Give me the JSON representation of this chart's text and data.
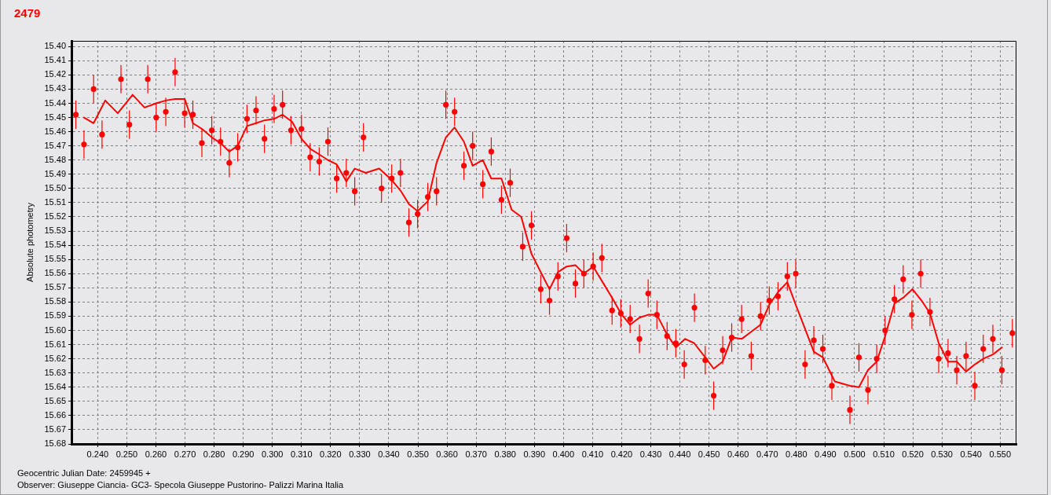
{
  "chart_data": {
    "type": "scatter",
    "title": "2479",
    "xlabel": "Geocentric Julian Date: 2459945 +",
    "ylabel": "Absolute photometry",
    "annotations": [
      "Observer: Giuseppe Ciancia- GC3- Specola Giuseppe Pustorino- Palizzi Marina Italia"
    ],
    "xlim": [
      0.231,
      0.5556
    ],
    "ylim": [
      15.68,
      15.396
    ],
    "xticks": [
      {
        "value": 0.24,
        "label": "0.240"
      },
      {
        "value": 0.25,
        "label": "0.250"
      },
      {
        "value": 0.26,
        "label": "0.260"
      },
      {
        "value": 0.27,
        "label": "0.270"
      },
      {
        "value": 0.28,
        "label": "0.280"
      },
      {
        "value": 0.29,
        "label": "0.290"
      },
      {
        "value": 0.3,
        "label": "0.300"
      },
      {
        "value": 0.31,
        "label": "0.310"
      },
      {
        "value": 0.32,
        "label": "0.320"
      },
      {
        "value": 0.33,
        "label": "0.330"
      },
      {
        "value": 0.34,
        "label": "0.340"
      },
      {
        "value": 0.35,
        "label": "0.350"
      },
      {
        "value": 0.36,
        "label": "0.360"
      },
      {
        "value": 0.37,
        "label": "0.370"
      },
      {
        "value": 0.38,
        "label": "0.380"
      },
      {
        "value": 0.39,
        "label": "0.390"
      },
      {
        "value": 0.4,
        "label": "0.400"
      },
      {
        "value": 0.41,
        "label": "0.410"
      },
      {
        "value": 0.42,
        "label": "0.420"
      },
      {
        "value": 0.43,
        "label": "0.430"
      },
      {
        "value": 0.44,
        "label": "0.440"
      },
      {
        "value": 0.45,
        "label": "0.450"
      },
      {
        "value": 0.46,
        "label": "0.460"
      },
      {
        "value": 0.47,
        "label": "0.470"
      },
      {
        "value": 0.48,
        "label": "0.480"
      },
      {
        "value": 0.49,
        "label": "0.490"
      },
      {
        "value": 0.5,
        "label": "0.500"
      },
      {
        "value": 0.51,
        "label": "0.510"
      },
      {
        "value": 0.52,
        "label": "0.520"
      },
      {
        "value": 0.53,
        "label": "0.530"
      },
      {
        "value": 0.54,
        "label": "0.540"
      },
      {
        "value": 0.55,
        "label": "0.550"
      }
    ],
    "yticks": [
      {
        "value": 15.4,
        "label": "15.40"
      },
      15.41,
      15.42,
      15.43,
      15.44,
      15.45,
      15.46,
      15.47,
      15.48,
      15.49,
      {
        "value": 15.5,
        "label": "15.50"
      },
      15.51,
      15.52,
      15.53,
      15.54,
      15.55,
      15.56,
      15.57,
      15.58,
      15.59,
      {
        "value": 15.6,
        "label": "15.60"
      },
      15.61,
      15.62,
      15.63,
      15.64,
      15.65,
      15.66,
      15.67,
      15.68
    ],
    "grid": true,
    "series": [
      {
        "color": "#ff0000",
        "marker": "circle",
        "x": [
          0.2325,
          0.2353,
          0.2386,
          0.2415,
          0.248,
          0.2509,
          0.2572,
          0.2601,
          0.2634,
          0.2666,
          0.2699,
          0.2727,
          0.2758,
          0.2792,
          0.2822,
          0.2852,
          0.2881,
          0.2913,
          0.2944,
          0.2973,
          0.3006,
          0.3035,
          0.3064,
          0.31,
          0.313,
          0.3161,
          0.3191,
          0.3221,
          0.3254,
          0.3283,
          0.3313,
          0.3375,
          0.341,
          0.344,
          0.3469,
          0.3499,
          0.3534,
          0.3564,
          0.3596,
          0.3626,
          0.3658,
          0.3688,
          0.3723,
          0.3752,
          0.3787,
          0.3817,
          0.386,
          0.389,
          0.3922,
          0.3952,
          0.3981,
          0.4011,
          0.4041,
          0.407,
          0.4102,
          0.4132,
          0.4167,
          0.4197,
          0.4229,
          0.4261,
          0.4291,
          0.4321,
          0.4356,
          0.4386,
          0.4415,
          0.445,
          0.4487,
          0.4516,
          0.4547,
          0.4578,
          0.4612,
          0.4645,
          0.4677,
          0.4707,
          0.4737,
          0.4769,
          0.4798,
          0.483,
          0.486,
          0.4891,
          0.4922,
          0.4984,
          0.5015,
          0.5046,
          0.5076,
          0.5105,
          0.5137,
          0.5167,
          0.5197,
          0.5227,
          0.5259,
          0.5289,
          0.5321,
          0.5351,
          0.5383,
          0.5413,
          0.5442,
          0.5475,
          0.5506,
          0.5542
        ],
        "values": [
          15.448,
          15.469,
          15.43,
          15.462,
          15.423,
          15.455,
          15.423,
          15.45,
          15.446,
          15.418,
          15.447,
          15.448,
          15.468,
          15.459,
          15.467,
          15.482,
          15.471,
          15.451,
          15.445,
          15.465,
          15.444,
          15.441,
          15.459,
          15.458,
          15.478,
          15.481,
          15.467,
          15.493,
          15.489,
          15.502,
          15.464,
          15.5,
          15.493,
          15.489,
          15.524,
          15.518,
          15.506,
          15.502,
          15.441,
          15.446,
          15.484,
          15.47,
          15.497,
          15.474,
          15.508,
          15.496,
          15.541,
          15.526,
          15.571,
          15.579,
          15.562,
          15.535,
          15.567,
          15.56,
          15.555,
          15.549,
          15.586,
          15.588,
          15.592,
          15.606,
          15.574,
          15.589,
          15.604,
          15.609,
          15.624,
          15.584,
          15.621,
          15.646,
          15.614,
          15.605,
          15.592,
          15.618,
          15.59,
          15.579,
          15.576,
          15.562,
          15.56,
          15.624,
          15.607,
          15.613,
          15.639,
          15.656,
          15.619,
          15.642,
          15.62,
          15.6,
          15.578,
          15.564,
          15.589,
          15.56,
          15.587,
          15.62,
          15.616,
          15.628,
          15.618,
          15.639,
          15.613,
          15.606,
          15.628,
          15.602
        ],
        "errors": [
          0.01,
          0.01,
          0.01,
          0.01,
          0.01,
          0.01,
          0.01,
          0.01,
          0.01,
          0.01,
          0.01,
          0.01,
          0.01,
          0.01,
          0.01,
          0.01,
          0.01,
          0.01,
          0.01,
          0.01,
          0.01,
          0.01,
          0.01,
          0.01,
          0.01,
          0.01,
          0.01,
          0.01,
          0.01,
          0.01,
          0.01,
          0.01,
          0.01,
          0.01,
          0.01,
          0.01,
          0.01,
          0.01,
          0.01,
          0.01,
          0.01,
          0.01,
          0.01,
          0.01,
          0.01,
          0.01,
          0.01,
          0.01,
          0.01,
          0.01,
          0.01,
          0.01,
          0.01,
          0.01,
          0.01,
          0.01,
          0.01,
          0.01,
          0.01,
          0.01,
          0.01,
          0.01,
          0.01,
          0.01,
          0.01,
          0.01,
          0.01,
          0.01,
          0.01,
          0.01,
          0.01,
          0.01,
          0.01,
          0.01,
          0.01,
          0.01,
          0.01,
          0.01,
          0.01,
          0.01,
          0.01,
          0.01,
          0.01,
          0.01,
          0.01,
          0.01,
          0.01,
          0.01,
          0.01,
          0.01,
          0.01,
          0.01,
          0.01,
          0.01,
          0.01,
          0.01,
          0.01,
          0.01,
          0.01,
          0.01
        ]
      },
      {
        "type": "line",
        "color": "#ff0000",
        "marker": "none",
        "line_style": "solid",
        "x": [
          0.2353,
          0.2386,
          0.2426,
          0.2469,
          0.252,
          0.2561,
          0.2601,
          0.2634,
          0.2666,
          0.2699,
          0.2727,
          0.2758,
          0.2792,
          0.2822,
          0.2852,
          0.2881,
          0.2913,
          0.2944,
          0.2973,
          0.3006,
          0.3035,
          0.3068,
          0.31,
          0.313,
          0.3161,
          0.3191,
          0.3221,
          0.3254,
          0.3283,
          0.3321,
          0.3367,
          0.341,
          0.3442,
          0.3469,
          0.3499,
          0.3534,
          0.3564,
          0.3596,
          0.3626,
          0.3658,
          0.3688,
          0.3723,
          0.3752,
          0.3787,
          0.3822,
          0.3855,
          0.389,
          0.3952,
          0.3981,
          0.4011,
          0.4041,
          0.407,
          0.4102,
          0.4167,
          0.4197,
          0.4229,
          0.4261,
          0.4291,
          0.4321,
          0.4356,
          0.4386,
          0.4418,
          0.4449,
          0.4487,
          0.4516,
          0.4547,
          0.4578,
          0.4612,
          0.4645,
          0.4677,
          0.4707,
          0.4737,
          0.4769,
          0.4798,
          0.483,
          0.486,
          0.4891,
          0.4932,
          0.4984,
          0.5015,
          0.5046,
          0.5076,
          0.5105,
          0.5137,
          0.5167,
          0.5199,
          0.523,
          0.5259,
          0.5289,
          0.5321,
          0.5351,
          0.5383,
          0.5413,
          0.5442,
          0.5475,
          0.5506
        ],
        "values": [
          15.45,
          15.454,
          15.438,
          15.447,
          15.434,
          15.443,
          15.44,
          15.438,
          15.437,
          15.437,
          15.454,
          15.458,
          15.464,
          15.468,
          15.474,
          15.47,
          15.456,
          15.454,
          15.452,
          15.451,
          15.448,
          15.453,
          15.465,
          15.472,
          15.476,
          15.48,
          15.483,
          15.495,
          15.486,
          15.489,
          15.486,
          15.494,
          15.502,
          15.511,
          15.516,
          15.509,
          15.482,
          15.464,
          15.457,
          15.467,
          15.484,
          15.48,
          15.493,
          15.493,
          15.515,
          15.52,
          15.546,
          15.571,
          15.559,
          15.555,
          15.554,
          15.56,
          15.555,
          15.577,
          15.588,
          15.596,
          15.591,
          15.589,
          15.589,
          15.603,
          15.612,
          15.606,
          15.609,
          15.619,
          15.627,
          15.622,
          15.605,
          15.606,
          15.601,
          15.596,
          15.582,
          15.573,
          15.566,
          15.582,
          15.599,
          15.615,
          15.619,
          15.636,
          15.639,
          15.64,
          15.628,
          15.622,
          15.604,
          15.581,
          15.577,
          15.571,
          15.579,
          15.588,
          15.609,
          15.622,
          15.622,
          15.629,
          15.624,
          15.62,
          15.617,
          15.612
        ]
      }
    ]
  }
}
